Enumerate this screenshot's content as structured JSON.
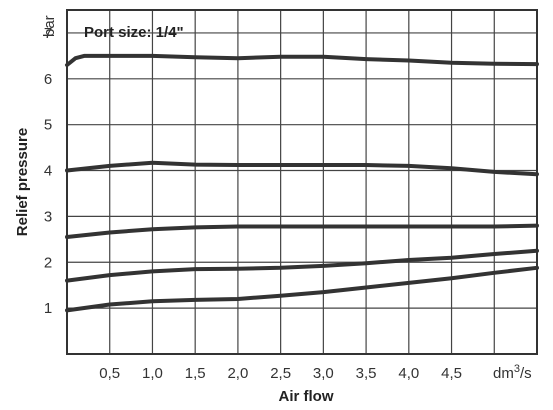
{
  "chart_data": {
    "type": "line",
    "annotation": "Port size: 1/4\"",
    "xlabel": "Air flow",
    "ylabel": "Relief pressure",
    "x_unit": "dm",
    "x_unit_exp": "3",
    "x_unit_tail": "/s",
    "y_unit": "bar",
    "xlim": [
      0,
      5.5
    ],
    "ylim": [
      0,
      7.5
    ],
    "x_ticks": [
      0.5,
      1.0,
      1.5,
      2.0,
      2.5,
      3.0,
      3.5,
      4.0,
      4.5
    ],
    "x_tick_labels": [
      "0,5",
      "1,0",
      "1,5",
      "2,0",
      "2,5",
      "3,0",
      "3,5",
      "4,0",
      "4,5"
    ],
    "x_grid": [
      0.5,
      1.0,
      1.5,
      2.0,
      2.5,
      3.0,
      3.5,
      4.0,
      4.5,
      5.0
    ],
    "y_ticks": [
      1,
      2,
      3,
      4,
      5,
      6,
      7
    ],
    "y_tick_labels": [
      "1",
      "2",
      "3",
      "4",
      "5",
      "6",
      "7"
    ],
    "grid": true,
    "series": [
      {
        "x": [
          0,
          0.1,
          0.2,
          0.5,
          1.0,
          1.5,
          2.0,
          2.5,
          3.0,
          3.5,
          4.0,
          4.5,
          5.0,
          5.5
        ],
        "y": [
          6.3,
          6.45,
          6.5,
          6.5,
          6.5,
          6.47,
          6.45,
          6.48,
          6.48,
          6.43,
          6.4,
          6.35,
          6.33,
          6.32
        ]
      },
      {
        "x": [
          0,
          0.5,
          1.0,
          1.5,
          2.0,
          2.5,
          3.0,
          3.5,
          4.0,
          4.5,
          5.0,
          5.5
        ],
        "y": [
          4.0,
          4.1,
          4.17,
          4.13,
          4.12,
          4.12,
          4.12,
          4.12,
          4.1,
          4.05,
          3.97,
          3.92
        ]
      },
      {
        "x": [
          0,
          0.5,
          1.0,
          1.5,
          2.0,
          2.5,
          3.0,
          3.5,
          4.0,
          4.5,
          5.0,
          5.5
        ],
        "y": [
          2.55,
          2.65,
          2.72,
          2.76,
          2.78,
          2.78,
          2.78,
          2.78,
          2.78,
          2.78,
          2.78,
          2.8
        ]
      },
      {
        "x": [
          0,
          0.5,
          1.0,
          1.5,
          2.0,
          2.5,
          3.0,
          3.5,
          4.0,
          4.5,
          5.0,
          5.5
        ],
        "y": [
          1.6,
          1.72,
          1.8,
          1.85,
          1.86,
          1.88,
          1.92,
          1.98,
          2.05,
          2.1,
          2.18,
          2.25
        ]
      },
      {
        "x": [
          0,
          0.5,
          1.0,
          1.5,
          2.0,
          2.5,
          3.0,
          3.5,
          4.0,
          4.5,
          5.0,
          5.5
        ],
        "y": [
          0.95,
          1.08,
          1.15,
          1.18,
          1.2,
          1.27,
          1.35,
          1.45,
          1.55,
          1.65,
          1.77,
          1.88
        ]
      }
    ]
  }
}
